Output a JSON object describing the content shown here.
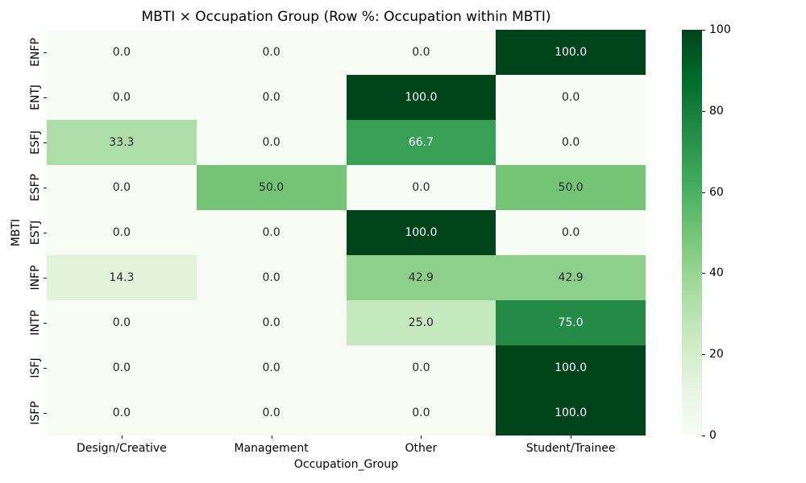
{
  "figure": {
    "background": "#ffffff"
  },
  "chart_data": {
    "type": "heatmap",
    "title": "MBTI × Occupation Group (Row %: Occupation within MBTI)",
    "xlabel": "Occupation_Group",
    "ylabel": "MBTI",
    "columns": [
      "Design/Creative",
      "Management",
      "Other",
      "Student/Trainee"
    ],
    "rows": [
      "ENFP",
      "ENTJ",
      "ESFJ",
      "ESFP",
      "ESTJ",
      "INFP",
      "INTP",
      "ISFJ",
      "ISFP"
    ],
    "values": [
      [
        0.0,
        0.0,
        0.0,
        100.0
      ],
      [
        0.0,
        0.0,
        100.0,
        0.0
      ],
      [
        33.3,
        0.0,
        66.7,
        0.0
      ],
      [
        0.0,
        50.0,
        0.0,
        50.0
      ],
      [
        0.0,
        0.0,
        100.0,
        0.0
      ],
      [
        14.3,
        0.0,
        42.9,
        42.9
      ],
      [
        0.0,
        0.0,
        25.0,
        75.0
      ],
      [
        0.0,
        0.0,
        0.0,
        100.0
      ],
      [
        0.0,
        0.0,
        0.0,
        100.0
      ]
    ],
    "vmin": 0,
    "vmax": 100,
    "grid": false,
    "legend_position": "right-colorbar",
    "colorbar": {
      "ticks": [
        0,
        20,
        40,
        60,
        80,
        100
      ]
    },
    "colormap": {
      "name": "Greens",
      "stops": [
        [
          0.0,
          "#f7fcf5"
        ],
        [
          0.125,
          "#e5f5e0"
        ],
        [
          0.25,
          "#c7e9c0"
        ],
        [
          0.375,
          "#a1d99b"
        ],
        [
          0.5,
          "#74c476"
        ],
        [
          0.625,
          "#41ab5d"
        ],
        [
          0.75,
          "#238b45"
        ],
        [
          0.875,
          "#006d2c"
        ],
        [
          1.0,
          "#00441b"
        ]
      ]
    },
    "annotation_colors": {
      "dark": "#262626",
      "light": "#ffffff"
    },
    "axis_text_color": "#000000"
  }
}
